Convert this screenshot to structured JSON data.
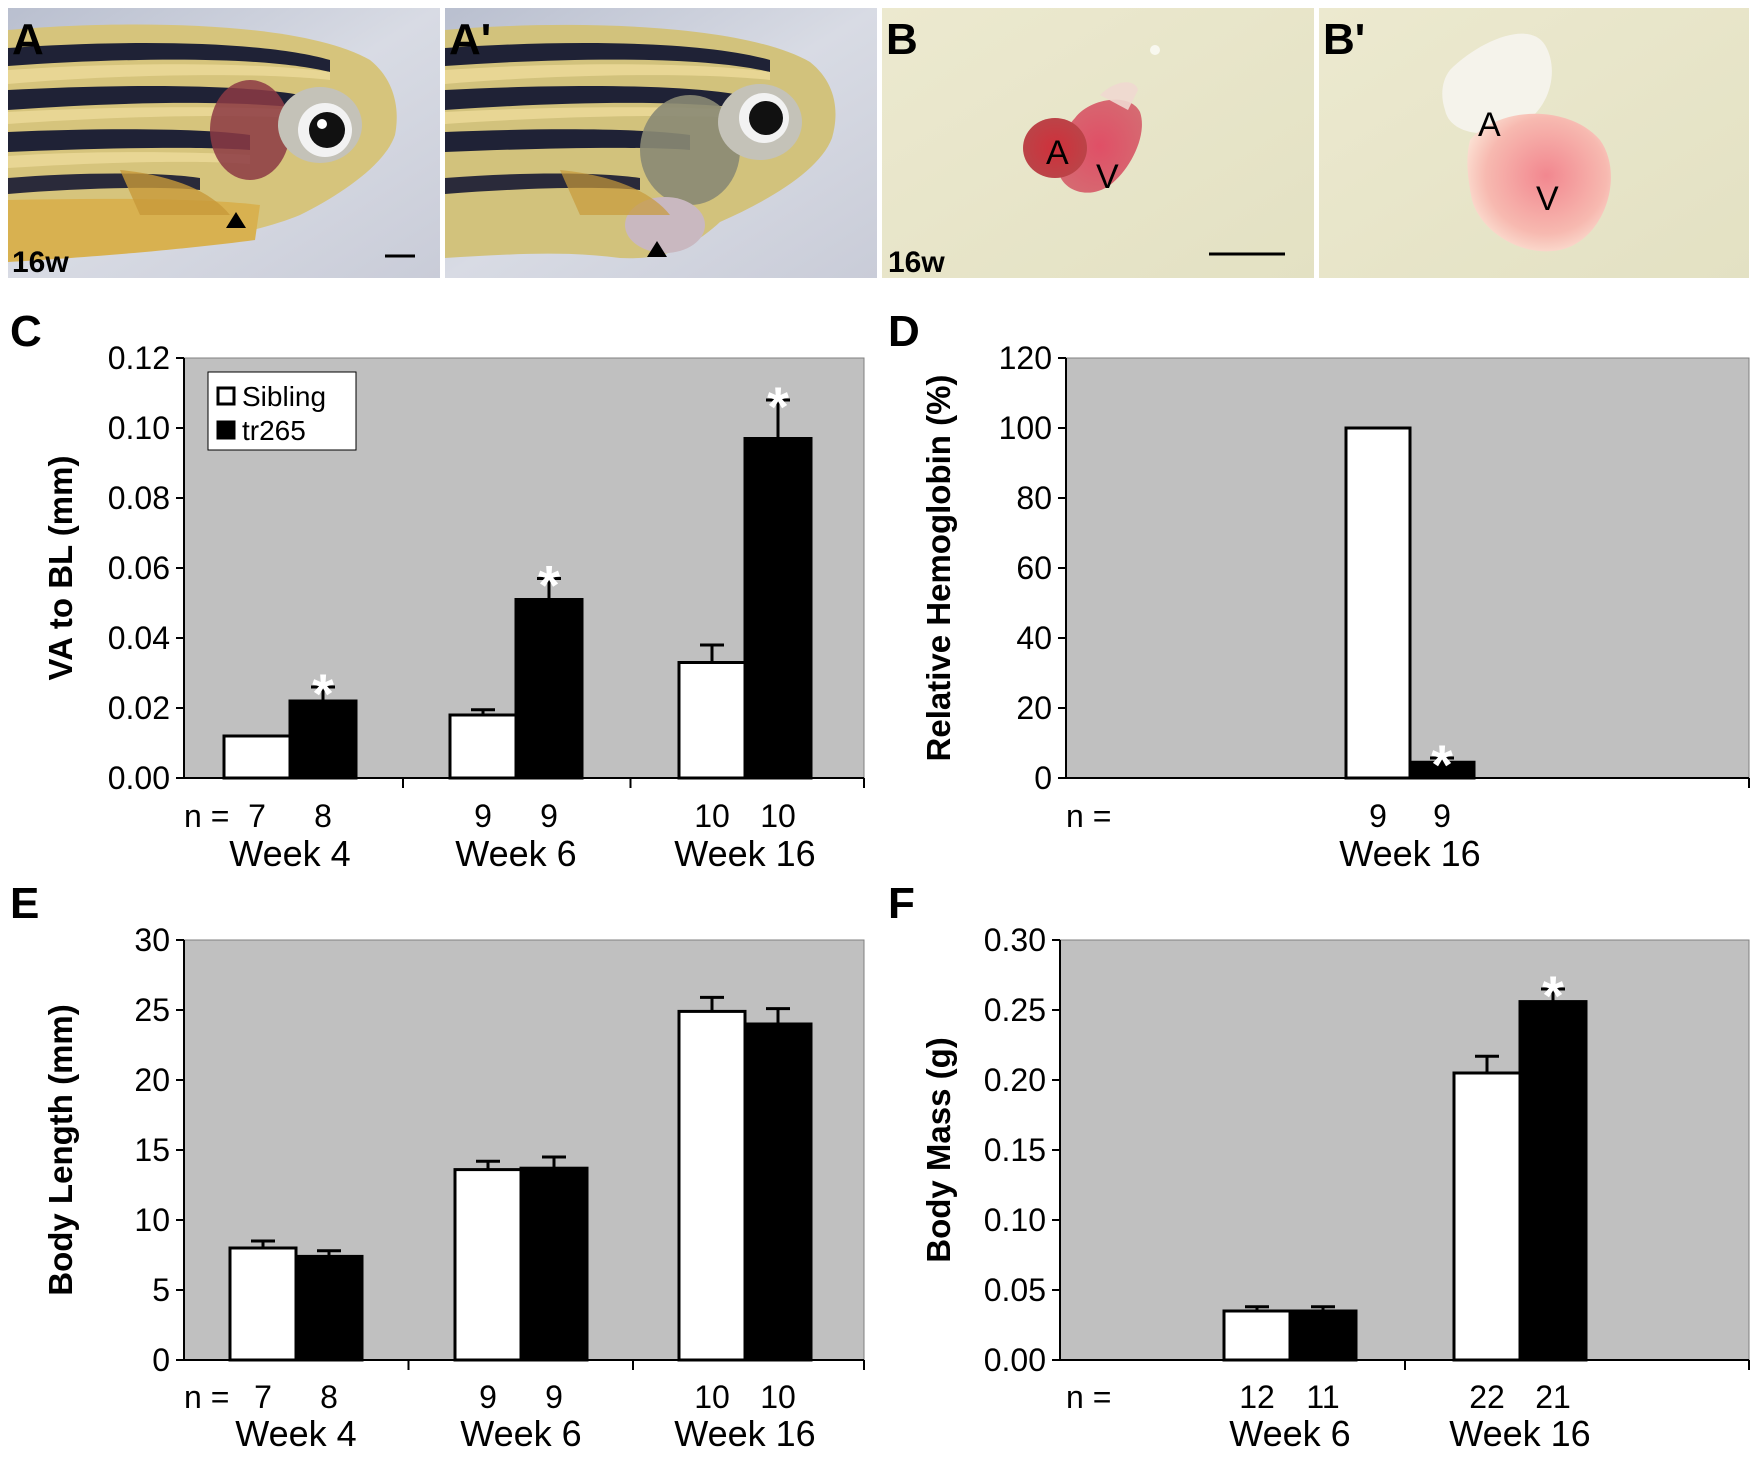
{
  "photos": [
    {
      "label": "A",
      "week": "16w",
      "kind": "fish"
    },
    {
      "label": "A'",
      "kind": "fish"
    },
    {
      "label": "B",
      "week": "16w",
      "kind": "heart",
      "atrium": "A",
      "ventricle": "V"
    },
    {
      "label": "B'",
      "kind": "heart",
      "atrium": "A",
      "ventricle": "V"
    }
  ],
  "colors": {
    "plot_bg": "#c0c0c0",
    "sibling": "#ffffff",
    "tr265": "#000000",
    "star": "#ffffff"
  },
  "n_prefix": "n =",
  "chart_data": [
    {
      "panel": "C",
      "type": "bar",
      "ylabel": "VA to BL (mm)",
      "ylim": [
        0,
        0.12
      ],
      "yticks": [
        "0.00",
        "0.02",
        "0.04",
        "0.06",
        "0.08",
        "0.10",
        "0.12"
      ],
      "categories": [
        "Week 4",
        "Week 6",
        "Week 16"
      ],
      "legend": {
        "placement": "top-left",
        "entries": [
          "Sibling",
          "tr265"
        ]
      },
      "series": [
        {
          "name": "Sibling",
          "values": [
            0.012,
            0.018,
            0.033
          ],
          "errors": [
            0,
            0.0015,
            0.005
          ],
          "n": [
            "7",
            "9",
            "10"
          ]
        },
        {
          "name": "tr265",
          "values": [
            0.022,
            0.051,
            0.097
          ],
          "errors": [
            0.004,
            0.006,
            0.011
          ],
          "n": [
            "8",
            "9",
            "10"
          ]
        }
      ],
      "significance": [
        {
          "series": 1,
          "category": 0,
          "mark": "*"
        },
        {
          "series": 1,
          "category": 1,
          "mark": "*"
        },
        {
          "series": 1,
          "category": 2,
          "mark": "*"
        }
      ]
    },
    {
      "panel": "D",
      "type": "bar",
      "ylabel": "Relative Hemoglobin (%)",
      "ylim": [
        0,
        120
      ],
      "yticks": [
        "0",
        "20",
        "40",
        "60",
        "80",
        "100",
        "120"
      ],
      "categories": [
        "Week 16"
      ],
      "series": [
        {
          "values": [
            100
          ],
          "errors": [
            0
          ],
          "n": [
            "9"
          ]
        },
        {
          "values": [
            4.5
          ],
          "errors": [
            1.2
          ],
          "n": [
            "9"
          ]
        }
      ],
      "significance": [
        {
          "series": 1,
          "category": 0,
          "mark": "*"
        }
      ]
    },
    {
      "panel": "E",
      "type": "bar",
      "ylabel": "Body Length (mm)",
      "ylim": [
        0,
        30
      ],
      "yticks": [
        "0",
        "5",
        "10",
        "15",
        "20",
        "25",
        "30"
      ],
      "categories": [
        "Week 4",
        "Week 6",
        "Week 16"
      ],
      "series": [
        {
          "values": [
            8.0,
            13.6,
            24.9
          ],
          "errors": [
            0.5,
            0.6,
            1.0
          ],
          "n": [
            "7",
            "9",
            "10"
          ]
        },
        {
          "values": [
            7.4,
            13.7,
            24.0
          ],
          "errors": [
            0.4,
            0.8,
            1.1
          ],
          "n": [
            "8",
            "9",
            "10"
          ]
        }
      ],
      "significance": []
    },
    {
      "panel": "F",
      "type": "bar",
      "ylabel": "Body Mass (g)",
      "ylim": [
        0,
        0.3
      ],
      "yticks": [
        "0.00",
        "0.05",
        "0.10",
        "0.15",
        "0.20",
        "0.25",
        "0.30"
      ],
      "categories": [
        "Week 6",
        "Week 16"
      ],
      "series": [
        {
          "values": [
            0.035,
            0.205
          ],
          "errors": [
            0.003,
            0.012
          ],
          "n": [
            "12",
            "22"
          ]
        },
        {
          "values": [
            0.035,
            0.256
          ],
          "errors": [
            0.003,
            0.009
          ],
          "n": [
            "11",
            "21"
          ]
        }
      ],
      "significance": [
        {
          "series": 1,
          "category": 1,
          "mark": "*"
        }
      ]
    }
  ]
}
